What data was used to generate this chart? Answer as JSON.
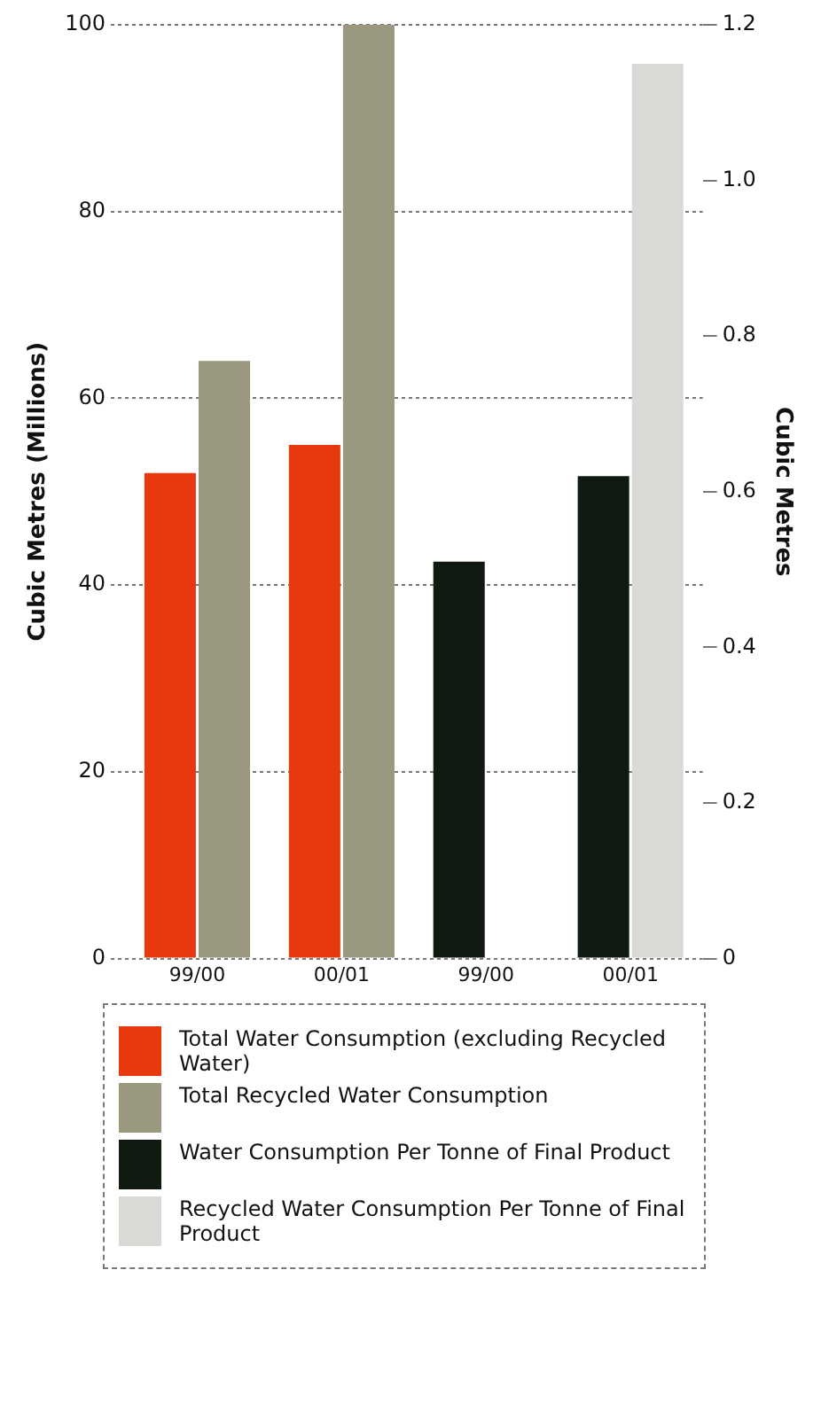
{
  "chart_data": {
    "type": "bar",
    "categories": [
      "99/00",
      "00/01",
      "99/00",
      "00/01"
    ],
    "series": [
      {
        "name": "Total Water Consumption (excluding Recycled Water)",
        "color": "#e8380d",
        "values": [
          52,
          55,
          null,
          null
        ]
      },
      {
        "name": "Total Recycled Water Consumption",
        "color": "#9a9980",
        "values": [
          64,
          100,
          null,
          null
        ]
      },
      {
        "name": "Water Consumption Per Tonne of Final Product",
        "color": "#101a10",
        "axis": "y2",
        "values": [
          null,
          null,
          0.51,
          0.62
        ]
      },
      {
        "name": "Recycled Water Consumption Per Tonne of Final Product",
        "color": "#d9d9d6",
        "axis": "y2",
        "values": [
          null,
          null,
          null,
          1.15
        ]
      }
    ],
    "ylabel": "Cubic Metres (Millions)",
    "y2label": "Cubic Metres",
    "ylim": [
      0,
      100
    ],
    "yticks": [
      0,
      20,
      40,
      60,
      80,
      100
    ],
    "y2lim": [
      0,
      1.2
    ],
    "y2ticks": [
      0,
      {
        "value": 0.2,
        "label": "0.2"
      },
      {
        "value": 0.4,
        "label": "0.4"
      },
      {
        "value": 0.6,
        "label": "0.6"
      },
      {
        "value": 0.8,
        "label": "0.8"
      },
      {
        "value": 1,
        "label": "1.0"
      },
      {
        "value": 1.2,
        "label": "1.2"
      }
    ],
    "grid": "y",
    "legend": "bottom"
  }
}
